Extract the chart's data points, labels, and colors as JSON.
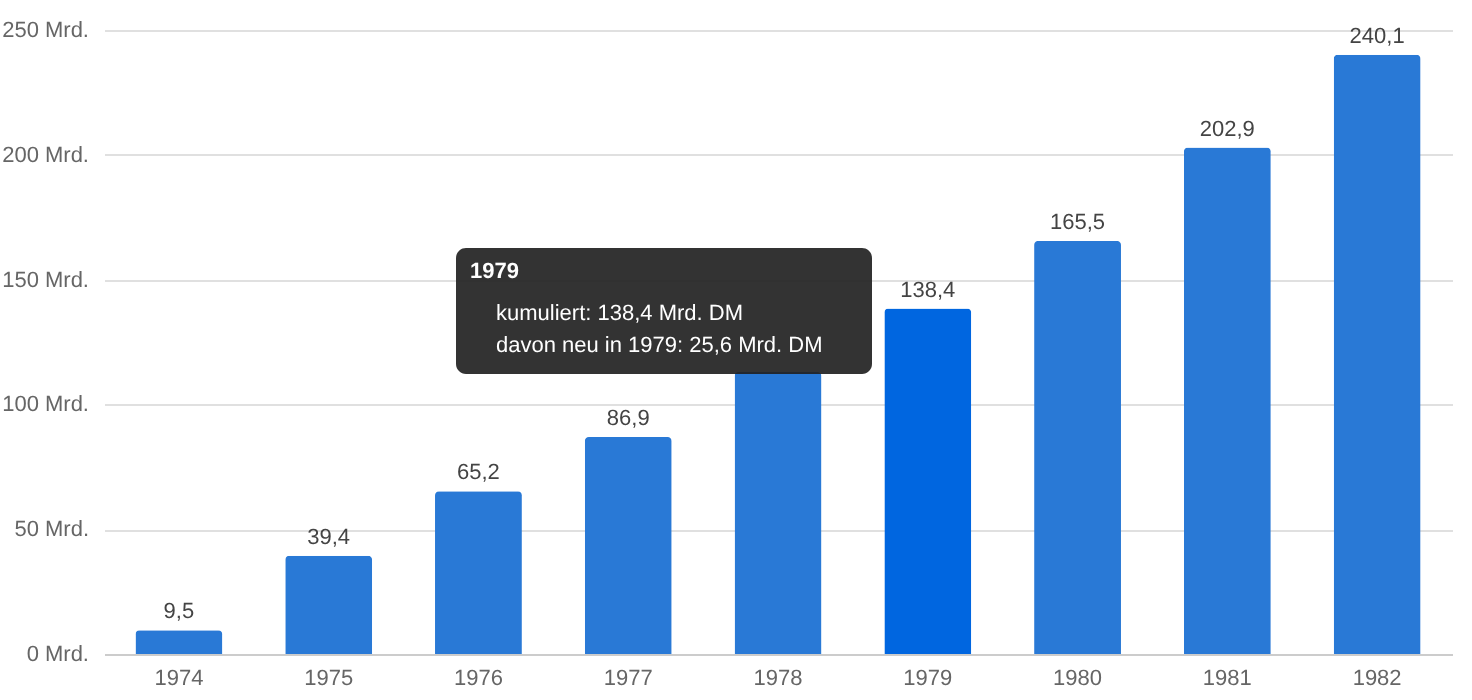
{
  "chart_data": {
    "type": "bar",
    "categories": [
      "1974",
      "1975",
      "1976",
      "1977",
      "1978",
      "1979",
      "1980",
      "1981",
      "1982"
    ],
    "values": [
      9.5,
      39.4,
      65.2,
      86.9,
      113,
      138.4,
      165.5,
      202.9,
      240.1
    ],
    "colors": [
      "#2979d6",
      "#2979d6",
      "#2979d6",
      "#2979d6",
      "#2979d6",
      "#0066e0",
      "#2979d6",
      "#2979d6",
      "#2979d6"
    ],
    "value_labels": [
      "9,5",
      "39,4",
      "65,2",
      "86,9",
      null,
      "138,4",
      "165,5",
      "202,9",
      "240,1"
    ],
    "ylim": [
      0,
      250
    ],
    "yticks": [
      {
        "value": 0,
        "label": "0 Mrd."
      },
      {
        "value": 50,
        "label": "50 Mrd."
      },
      {
        "value": 100,
        "label": "100 Mrd."
      },
      {
        "value": 150,
        "label": "150 Mrd."
      },
      {
        "value": 200,
        "label": "200 Mrd."
      },
      {
        "value": 250,
        "label": "250 Mrd."
      }
    ],
    "grid": "y",
    "annotations": [
      "1979",
      "kumuliert: 138,4 Mrd. DM",
      "davon neu in 1979: 25,6 Mrd. DM"
    ]
  }
}
